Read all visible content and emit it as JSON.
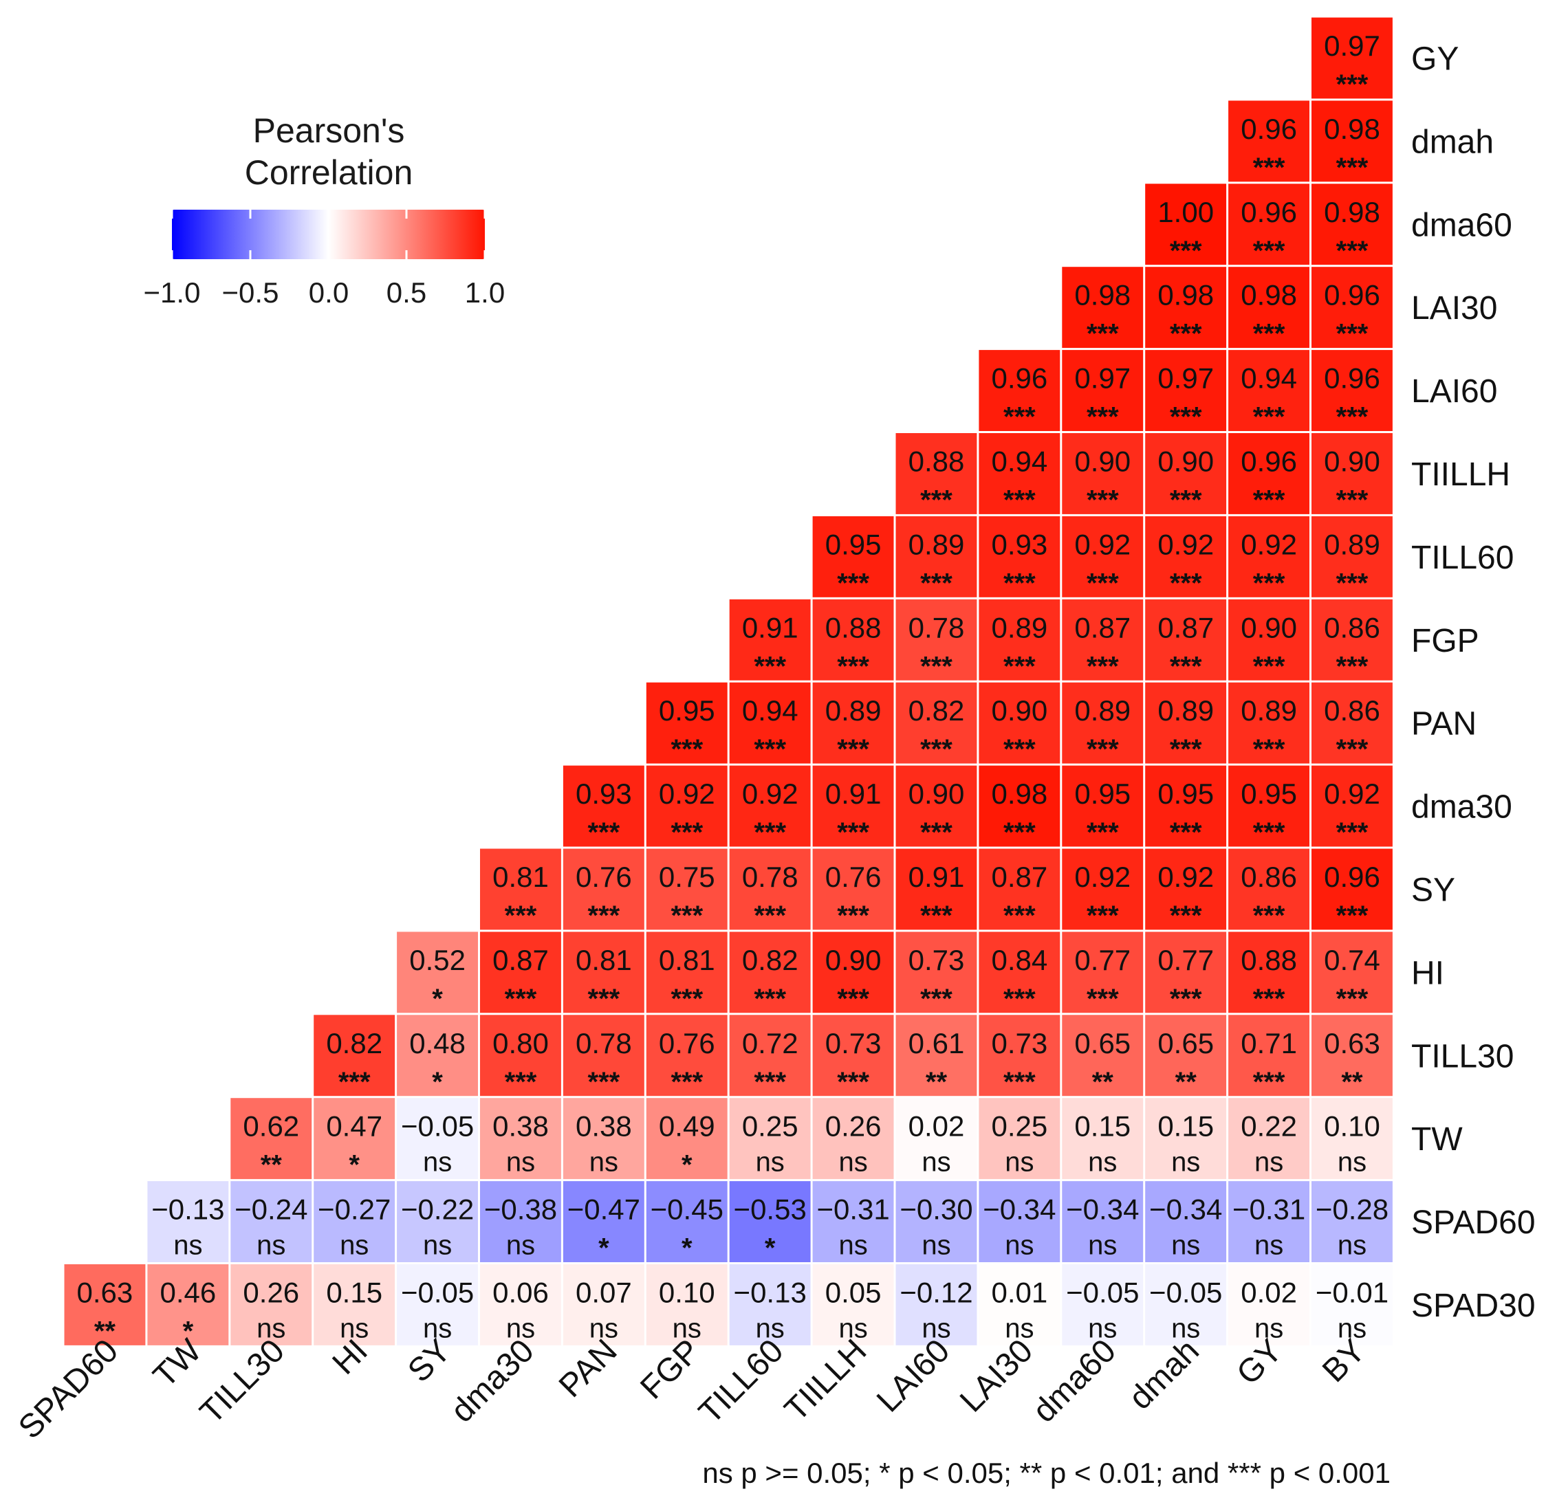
{
  "chart_data": {
    "type": "heatmap",
    "title": "",
    "legend": {
      "title_lines": [
        "Pearson's",
        "Correlation"
      ],
      "ticks": [
        "−1.0",
        "−0.5",
        "0.0",
        "0.5",
        "1.0"
      ],
      "tick_values": [
        -1.0,
        -0.5,
        0.0,
        0.5,
        1.0
      ],
      "placement": "top-left",
      "colors": {
        "low": "#0000ff",
        "mid": "#ffffff",
        "high": "#ff1400"
      }
    },
    "x_categories": [
      "SPAD60",
      "TW",
      "TILL30",
      "HI",
      "SY",
      "dma30",
      "PAN",
      "FGP",
      "TILL60",
      "TIILLH",
      "LAI60",
      "LAI30",
      "dma60",
      "dmah",
      "GY",
      "BY"
    ],
    "y_categories": [
      "GY",
      "dmah",
      "dma60",
      "LAI30",
      "LAI60",
      "TIILLH",
      "TILL60",
      "FGP",
      "PAN",
      "dma30",
      "SY",
      "HI",
      "TILL30",
      "TW",
      "SPAD60",
      "SPAD30"
    ],
    "cells": [
      {
        "r": 0,
        "c": 15,
        "label": "0.97",
        "sig": "***"
      },
      {
        "r": 1,
        "c": 14,
        "label": "0.96",
        "sig": "***"
      },
      {
        "r": 1,
        "c": 15,
        "label": "0.98",
        "sig": "***"
      },
      {
        "r": 2,
        "c": 13,
        "label": "1.00",
        "sig": "***"
      },
      {
        "r": 2,
        "c": 14,
        "label": "0.96",
        "sig": "***"
      },
      {
        "r": 2,
        "c": 15,
        "label": "0.98",
        "sig": "***"
      },
      {
        "r": 3,
        "c": 12,
        "label": "0.98",
        "sig": "***"
      },
      {
        "r": 3,
        "c": 13,
        "label": "0.98",
        "sig": "***"
      },
      {
        "r": 3,
        "c": 14,
        "label": "0.98",
        "sig": "***"
      },
      {
        "r": 3,
        "c": 15,
        "label": "0.96",
        "sig": "***"
      },
      {
        "r": 4,
        "c": 11,
        "label": "0.96",
        "sig": "***"
      },
      {
        "r": 4,
        "c": 12,
        "label": "0.97",
        "sig": "***"
      },
      {
        "r": 4,
        "c": 13,
        "label": "0.97",
        "sig": "***"
      },
      {
        "r": 4,
        "c": 14,
        "label": "0.94",
        "sig": "***"
      },
      {
        "r": 4,
        "c": 15,
        "label": "0.96",
        "sig": "***"
      },
      {
        "r": 5,
        "c": 10,
        "label": "0.88",
        "sig": "***"
      },
      {
        "r": 5,
        "c": 11,
        "label": "0.94",
        "sig": "***"
      },
      {
        "r": 5,
        "c": 12,
        "label": "0.90",
        "sig": "***"
      },
      {
        "r": 5,
        "c": 13,
        "label": "0.90",
        "sig": "***"
      },
      {
        "r": 5,
        "c": 14,
        "label": "0.96",
        "sig": "***"
      },
      {
        "r": 5,
        "c": 15,
        "label": "0.90",
        "sig": "***"
      },
      {
        "r": 6,
        "c": 9,
        "label": "0.95",
        "sig": "***"
      },
      {
        "r": 6,
        "c": 10,
        "label": "0.89",
        "sig": "***"
      },
      {
        "r": 6,
        "c": 11,
        "label": "0.93",
        "sig": "***"
      },
      {
        "r": 6,
        "c": 12,
        "label": "0.92",
        "sig": "***"
      },
      {
        "r": 6,
        "c": 13,
        "label": "0.92",
        "sig": "***"
      },
      {
        "r": 6,
        "c": 14,
        "label": "0.92",
        "sig": "***"
      },
      {
        "r": 6,
        "c": 15,
        "label": "0.89",
        "sig": "***"
      },
      {
        "r": 7,
        "c": 8,
        "label": "0.91",
        "sig": "***"
      },
      {
        "r": 7,
        "c": 9,
        "label": "0.88",
        "sig": "***"
      },
      {
        "r": 7,
        "c": 10,
        "label": "0.78",
        "sig": "***"
      },
      {
        "r": 7,
        "c": 11,
        "label": "0.89",
        "sig": "***"
      },
      {
        "r": 7,
        "c": 12,
        "label": "0.87",
        "sig": "***"
      },
      {
        "r": 7,
        "c": 13,
        "label": "0.87",
        "sig": "***"
      },
      {
        "r": 7,
        "c": 14,
        "label": "0.90",
        "sig": "***"
      },
      {
        "r": 7,
        "c": 15,
        "label": "0.86",
        "sig": "***"
      },
      {
        "r": 8,
        "c": 7,
        "label": "0.95",
        "sig": "***"
      },
      {
        "r": 8,
        "c": 8,
        "label": "0.94",
        "sig": "***"
      },
      {
        "r": 8,
        "c": 9,
        "label": "0.89",
        "sig": "***"
      },
      {
        "r": 8,
        "c": 10,
        "label": "0.82",
        "sig": "***"
      },
      {
        "r": 8,
        "c": 11,
        "label": "0.90",
        "sig": "***"
      },
      {
        "r": 8,
        "c": 12,
        "label": "0.89",
        "sig": "***"
      },
      {
        "r": 8,
        "c": 13,
        "label": "0.89",
        "sig": "***"
      },
      {
        "r": 8,
        "c": 14,
        "label": "0.89",
        "sig": "***"
      },
      {
        "r": 8,
        "c": 15,
        "label": "0.86",
        "sig": "***"
      },
      {
        "r": 9,
        "c": 6,
        "label": "0.93",
        "sig": "***"
      },
      {
        "r": 9,
        "c": 7,
        "label": "0.92",
        "sig": "***"
      },
      {
        "r": 9,
        "c": 8,
        "label": "0.92",
        "sig": "***"
      },
      {
        "r": 9,
        "c": 9,
        "label": "0.91",
        "sig": "***"
      },
      {
        "r": 9,
        "c": 10,
        "label": "0.90",
        "sig": "***"
      },
      {
        "r": 9,
        "c": 11,
        "label": "0.98",
        "sig": "***"
      },
      {
        "r": 9,
        "c": 12,
        "label": "0.95",
        "sig": "***"
      },
      {
        "r": 9,
        "c": 13,
        "label": "0.95",
        "sig": "***"
      },
      {
        "r": 9,
        "c": 14,
        "label": "0.95",
        "sig": "***"
      },
      {
        "r": 9,
        "c": 15,
        "label": "0.92",
        "sig": "***"
      },
      {
        "r": 10,
        "c": 5,
        "label": "0.81",
        "sig": "***"
      },
      {
        "r": 10,
        "c": 6,
        "label": "0.76",
        "sig": "***"
      },
      {
        "r": 10,
        "c": 7,
        "label": "0.75",
        "sig": "***"
      },
      {
        "r": 10,
        "c": 8,
        "label": "0.78",
        "sig": "***"
      },
      {
        "r": 10,
        "c": 9,
        "label": "0.76",
        "sig": "***"
      },
      {
        "r": 10,
        "c": 10,
        "label": "0.91",
        "sig": "***"
      },
      {
        "r": 10,
        "c": 11,
        "label": "0.87",
        "sig": "***"
      },
      {
        "r": 10,
        "c": 12,
        "label": "0.92",
        "sig": "***"
      },
      {
        "r": 10,
        "c": 13,
        "label": "0.92",
        "sig": "***"
      },
      {
        "r": 10,
        "c": 14,
        "label": "0.86",
        "sig": "***"
      },
      {
        "r": 10,
        "c": 15,
        "label": "0.96",
        "sig": "***"
      },
      {
        "r": 11,
        "c": 4,
        "label": "0.52",
        "sig": "*"
      },
      {
        "r": 11,
        "c": 5,
        "label": "0.87",
        "sig": "***"
      },
      {
        "r": 11,
        "c": 6,
        "label": "0.81",
        "sig": "***"
      },
      {
        "r": 11,
        "c": 7,
        "label": "0.81",
        "sig": "***"
      },
      {
        "r": 11,
        "c": 8,
        "label": "0.82",
        "sig": "***"
      },
      {
        "r": 11,
        "c": 9,
        "label": "0.90",
        "sig": "***"
      },
      {
        "r": 11,
        "c": 10,
        "label": "0.73",
        "sig": "***"
      },
      {
        "r": 11,
        "c": 11,
        "label": "0.84",
        "sig": "***"
      },
      {
        "r": 11,
        "c": 12,
        "label": "0.77",
        "sig": "***"
      },
      {
        "r": 11,
        "c": 13,
        "label": "0.77",
        "sig": "***"
      },
      {
        "r": 11,
        "c": 14,
        "label": "0.88",
        "sig": "***"
      },
      {
        "r": 11,
        "c": 15,
        "label": "0.74",
        "sig": "***"
      },
      {
        "r": 12,
        "c": 3,
        "label": "0.82",
        "sig": "***"
      },
      {
        "r": 12,
        "c": 4,
        "label": "0.48",
        "sig": "*"
      },
      {
        "r": 12,
        "c": 5,
        "label": "0.80",
        "sig": "***"
      },
      {
        "r": 12,
        "c": 6,
        "label": "0.78",
        "sig": "***"
      },
      {
        "r": 12,
        "c": 7,
        "label": "0.76",
        "sig": "***"
      },
      {
        "r": 12,
        "c": 8,
        "label": "0.72",
        "sig": "***"
      },
      {
        "r": 12,
        "c": 9,
        "label": "0.73",
        "sig": "***"
      },
      {
        "r": 12,
        "c": 10,
        "label": "0.61",
        "sig": "**"
      },
      {
        "r": 12,
        "c": 11,
        "label": "0.73",
        "sig": "***"
      },
      {
        "r": 12,
        "c": 12,
        "label": "0.65",
        "sig": "**"
      },
      {
        "r": 12,
        "c": 13,
        "label": "0.65",
        "sig": "**"
      },
      {
        "r": 12,
        "c": 14,
        "label": "0.71",
        "sig": "***"
      },
      {
        "r": 12,
        "c": 15,
        "label": "0.63",
        "sig": "**"
      },
      {
        "r": 13,
        "c": 2,
        "label": "0.62",
        "sig": "**"
      },
      {
        "r": 13,
        "c": 3,
        "label": "0.47",
        "sig": "*"
      },
      {
        "r": 13,
        "c": 4,
        "label": "−0.05",
        "sig": "ns"
      },
      {
        "r": 13,
        "c": 5,
        "label": "0.38",
        "sig": "ns"
      },
      {
        "r": 13,
        "c": 6,
        "label": "0.38",
        "sig": "ns"
      },
      {
        "r": 13,
        "c": 7,
        "label": "0.49",
        "sig": "*"
      },
      {
        "r": 13,
        "c": 8,
        "label": "0.25",
        "sig": "ns"
      },
      {
        "r": 13,
        "c": 9,
        "label": "0.26",
        "sig": "ns"
      },
      {
        "r": 13,
        "c": 10,
        "label": "0.02",
        "sig": "ns"
      },
      {
        "r": 13,
        "c": 11,
        "label": "0.25",
        "sig": "ns"
      },
      {
        "r": 13,
        "c": 12,
        "label": "0.15",
        "sig": "ns"
      },
      {
        "r": 13,
        "c": 13,
        "label": "0.15",
        "sig": "ns"
      },
      {
        "r": 13,
        "c": 14,
        "label": "0.22",
        "sig": "ns"
      },
      {
        "r": 13,
        "c": 15,
        "label": "0.10",
        "sig": "ns"
      },
      {
        "r": 14,
        "c": 1,
        "label": "−0.13",
        "sig": "ns"
      },
      {
        "r": 14,
        "c": 2,
        "label": "−0.24",
        "sig": "ns"
      },
      {
        "r": 14,
        "c": 3,
        "label": "−0.27",
        "sig": "ns"
      },
      {
        "r": 14,
        "c": 4,
        "label": "−0.22",
        "sig": "ns"
      },
      {
        "r": 14,
        "c": 5,
        "label": "−0.38",
        "sig": "ns"
      },
      {
        "r": 14,
        "c": 6,
        "label": "−0.47",
        "sig": "*"
      },
      {
        "r": 14,
        "c": 7,
        "label": "−0.45",
        "sig": "*"
      },
      {
        "r": 14,
        "c": 8,
        "label": "−0.53",
        "sig": "*"
      },
      {
        "r": 14,
        "c": 9,
        "label": "−0.31",
        "sig": "ns"
      },
      {
        "r": 14,
        "c": 10,
        "label": "−0.30",
        "sig": "ns"
      },
      {
        "r": 14,
        "c": 11,
        "label": "−0.34",
        "sig": "ns"
      },
      {
        "r": 14,
        "c": 12,
        "label": "−0.34",
        "sig": "ns"
      },
      {
        "r": 14,
        "c": 13,
        "label": "−0.34",
        "sig": "ns"
      },
      {
        "r": 14,
        "c": 14,
        "label": "−0.31",
        "sig": "ns"
      },
      {
        "r": 14,
        "c": 15,
        "label": "−0.28",
        "sig": "ns"
      },
      {
        "r": 15,
        "c": 0,
        "label": "0.63",
        "sig": "**"
      },
      {
        "r": 15,
        "c": 1,
        "label": "0.46",
        "sig": "*"
      },
      {
        "r": 15,
        "c": 2,
        "label": "0.26",
        "sig": "ns"
      },
      {
        "r": 15,
        "c": 3,
        "label": "0.15",
        "sig": "ns"
      },
      {
        "r": 15,
        "c": 4,
        "label": "−0.05",
        "sig": "ns"
      },
      {
        "r": 15,
        "c": 5,
        "label": "0.06",
        "sig": "ns"
      },
      {
        "r": 15,
        "c": 6,
        "label": "0.07",
        "sig": "ns"
      },
      {
        "r": 15,
        "c": 7,
        "label": "0.10",
        "sig": "ns"
      },
      {
        "r": 15,
        "c": 8,
        "label": "−0.13",
        "sig": "ns"
      },
      {
        "r": 15,
        "c": 9,
        "label": "0.05",
        "sig": "ns"
      },
      {
        "r": 15,
        "c": 10,
        "label": "−0.12",
        "sig": "ns"
      },
      {
        "r": 15,
        "c": 11,
        "label": "0.01",
        "sig": "ns"
      },
      {
        "r": 15,
        "c": 12,
        "label": "−0.05",
        "sig": "ns"
      },
      {
        "r": 15,
        "c": 13,
        "label": "−0.05",
        "sig": "ns"
      },
      {
        "r": 15,
        "c": 14,
        "label": "0.02",
        "sig": "ns"
      },
      {
        "r": 15,
        "c": 15,
        "label": "−0.01",
        "sig": "ns"
      }
    ],
    "caption": "ns p >= 0.05; * p < 0.05; ** p < 0.01; and *** p < 0.001"
  }
}
